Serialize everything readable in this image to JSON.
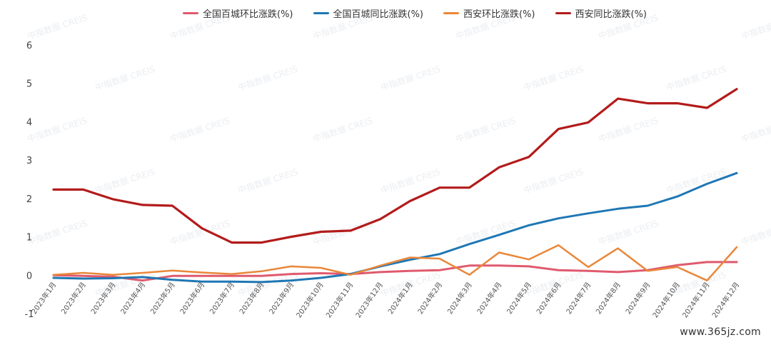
{
  "chart_data": {
    "type": "line",
    "categories": [
      "2023年1月",
      "2023年2月",
      "2023年3月",
      "2023年4月",
      "2023年5月",
      "2023年6月",
      "2023年7月",
      "2023年8月",
      "2023年9月",
      "2023年10月",
      "2023年11月",
      "2023年12月",
      "2024年1月",
      "2024年2月",
      "2024年3月",
      "2024年4月",
      "2024年5月",
      "2024年6月",
      "2024年7月",
      "2024年8月",
      "2024年9月",
      "2024年10月",
      "2024年11月",
      "2024年12月"
    ],
    "yticks": [
      "6",
      "5",
      "4",
      "3",
      "2",
      "1",
      "0",
      "-1"
    ],
    "ylim": [
      -1,
      6
    ],
    "grid": false,
    "legend_position": "top",
    "series": [
      {
        "name": "全国百城环比涨跌(%)",
        "color": "#e05a6e",
        "values": [
          0.02,
          0.0,
          -0.02,
          -0.12,
          0.0,
          0.0,
          0.0,
          0.0,
          0.05,
          0.07,
          0.05,
          0.1,
          0.13,
          0.15,
          0.27,
          0.27,
          0.25,
          0.15,
          0.13,
          0.1,
          0.15,
          0.28,
          0.36,
          0.36
        ]
      },
      {
        "name": "全国百城同比涨跌(%)",
        "color": "#1f77b4",
        "values": [
          -0.05,
          -0.07,
          -0.06,
          -0.03,
          -0.1,
          -0.15,
          -0.15,
          -0.16,
          -0.12,
          -0.05,
          0.05,
          0.25,
          0.42,
          0.57,
          0.83,
          1.07,
          1.32,
          1.5,
          1.63,
          1.75,
          1.83,
          2.07,
          2.4,
          2.68
        ]
      },
      {
        "name": "西安环比涨跌(%)",
        "color": "#e9873a",
        "values": [
          0.03,
          0.08,
          0.03,
          0.08,
          0.14,
          0.09,
          0.05,
          0.12,
          0.25,
          0.21,
          0.03,
          0.27,
          0.48,
          0.45,
          0.03,
          0.61,
          0.43,
          0.8,
          0.23,
          0.72,
          0.13,
          0.23,
          -0.12,
          0.75
        ]
      },
      {
        "name": "西安同比涨跌(%)",
        "color": "#b31b1b",
        "values": [
          2.25,
          2.25,
          2.0,
          1.85,
          1.83,
          1.24,
          0.87,
          0.87,
          1.02,
          1.15,
          1.18,
          1.48,
          1.95,
          2.3,
          2.3,
          2.83,
          3.1,
          3.83,
          4.0,
          4.62,
          4.5,
          4.5,
          4.38,
          4.87
        ]
      }
    ]
  },
  "watermark": {
    "text": "中指数据 CREIS",
    "site": "www.365jz.com"
  }
}
